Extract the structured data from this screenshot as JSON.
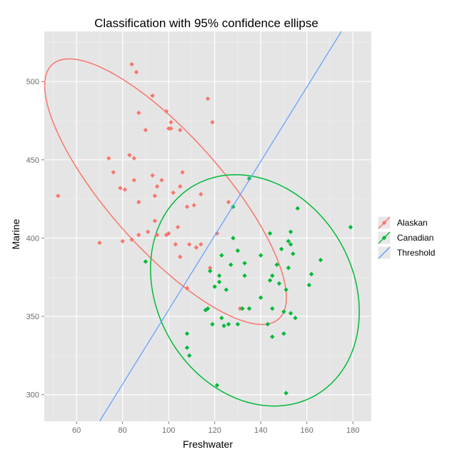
{
  "chart_data": {
    "type": "scatter",
    "title": "Classification with 95% confidence ellipse",
    "xlabel": "Freshwater",
    "ylabel": "Marine",
    "xlim": [
      46,
      188
    ],
    "ylim": [
      283,
      532
    ],
    "xticks": [
      60,
      80,
      100,
      120,
      140,
      160,
      180
    ],
    "yticks": [
      300,
      350,
      400,
      450,
      500
    ],
    "grid": true,
    "legend_position": "right",
    "legend": [
      "Alaskan",
      "Canadian",
      "Threshold"
    ],
    "colors": {
      "Alaskan": "#f8766d",
      "Canadian": "#00ba38",
      "Threshold": "#619cff",
      "panel": "#e5e5e5",
      "grid": "#ffffff"
    },
    "series": [
      {
        "name": "Alaskan",
        "points": [
          [
            52,
            427
          ],
          [
            70,
            397
          ],
          [
            74,
            451
          ],
          [
            76,
            442
          ],
          [
            79,
            432
          ],
          [
            80,
            398
          ],
          [
            81,
            431
          ],
          [
            83,
            453
          ],
          [
            84,
            511
          ],
          [
            84,
            399
          ],
          [
            85,
            451
          ],
          [
            85,
            437
          ],
          [
            86,
            506
          ],
          [
            87,
            480
          ],
          [
            87,
            423
          ],
          [
            87,
            402
          ],
          [
            90,
            469
          ],
          [
            91,
            404
          ],
          [
            93,
            491
          ],
          [
            93,
            440
          ],
          [
            94,
            411
          ],
          [
            94,
            427
          ],
          [
            95,
            433
          ],
          [
            95,
            402
          ],
          [
            97,
            437
          ],
          [
            99,
            402
          ],
          [
            99,
            481
          ],
          [
            100,
            470
          ],
          [
            100,
            403
          ],
          [
            101,
            470
          ],
          [
            101,
            474
          ],
          [
            102,
            429
          ],
          [
            103,
            396
          ],
          [
            104,
            407
          ],
          [
            105,
            469
          ],
          [
            105,
            433
          ],
          [
            105,
            388
          ],
          [
            106,
            442
          ],
          [
            108,
            368
          ],
          [
            108,
            420
          ],
          [
            109,
            396
          ],
          [
            111,
            421
          ],
          [
            112,
            394
          ],
          [
            114,
            428
          ],
          [
            114,
            396
          ],
          [
            117,
            489
          ],
          [
            118,
            381
          ],
          [
            119,
            474
          ],
          [
            121,
            403
          ],
          [
            126,
            423
          ],
          [
            131,
            355
          ]
        ]
      },
      {
        "name": "Canadian",
        "points": [
          [
            90,
            385
          ],
          [
            108,
            339
          ],
          [
            108,
            330
          ],
          [
            109,
            325
          ],
          [
            116,
            354
          ],
          [
            117,
            355
          ],
          [
            118,
            379
          ],
          [
            119,
            345
          ],
          [
            120,
            369
          ],
          [
            121,
            306
          ],
          [
            122,
            376
          ],
          [
            122,
            372
          ],
          [
            123,
            389
          ],
          [
            123,
            349
          ],
          [
            124,
            344
          ],
          [
            125,
            367
          ],
          [
            126,
            345
          ],
          [
            127,
            383
          ],
          [
            128,
            420
          ],
          [
            128,
            400
          ],
          [
            130,
            392
          ],
          [
            130,
            345
          ],
          [
            132,
            355
          ],
          [
            133,
            376
          ],
          [
            133,
            384
          ],
          [
            135,
            355
          ],
          [
            135,
            438
          ],
          [
            140,
            362
          ],
          [
            140,
            389
          ],
          [
            143,
            345
          ],
          [
            144,
            373
          ],
          [
            144,
            403
          ],
          [
            145,
            376
          ],
          [
            145,
            337
          ],
          [
            145,
            355
          ],
          [
            147,
            383
          ],
          [
            148,
            371
          ],
          [
            149,
            393
          ],
          [
            150,
            353
          ],
          [
            150,
            339
          ],
          [
            151,
            367
          ],
          [
            152,
            398
          ],
          [
            152,
            381
          ],
          [
            153,
            352
          ],
          [
            153,
            404
          ],
          [
            153,
            396
          ],
          [
            154,
            390
          ],
          [
            155,
            349
          ],
          [
            156,
            419
          ],
          [
            161,
            370
          ],
          [
            162,
            377
          ],
          [
            166,
            386
          ],
          [
            179,
            407
          ],
          [
            151,
            301
          ]
        ]
      }
    ],
    "ellipses": [
      {
        "name": "Alaskan",
        "cx": 98.66,
        "cy": 429.66,
        "a": 95.7,
        "b": 28.0,
        "angle_deg": -61.0
      },
      {
        "name": "Canadian",
        "cx": 137.46,
        "cy": 366.62,
        "a": 74.6,
        "b": 44.1,
        "angle_deg": -80.0
      }
    ],
    "threshold_line": {
      "name": "Threshold",
      "x1": 70,
      "y1": 283,
      "x2": 175,
      "y2": 532
    }
  }
}
